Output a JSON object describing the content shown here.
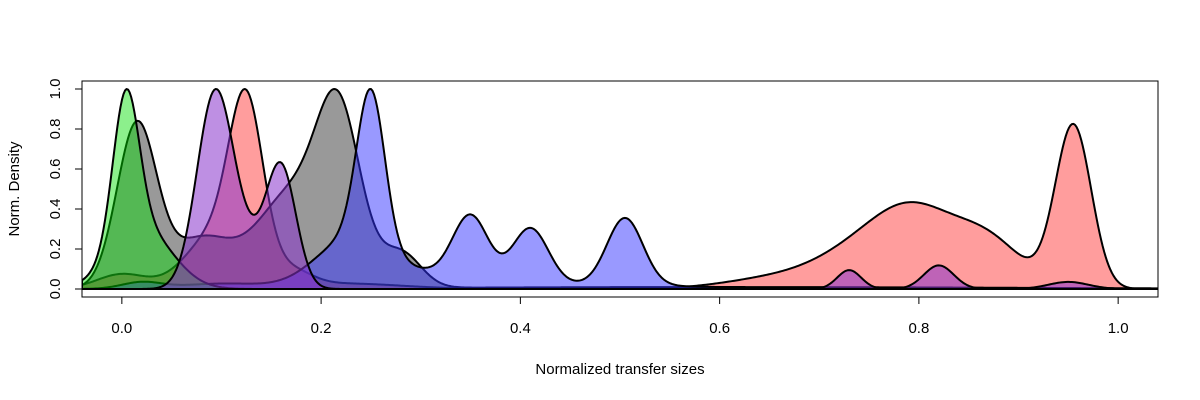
{
  "chart_data": {
    "type": "area",
    "title": "",
    "xlabel": "Normalized transfer sizes",
    "ylabel": "Norm. Density",
    "xlim": [
      -0.04,
      1.04
    ],
    "ylim": [
      -0.04,
      1.04
    ],
    "x_ticks": [
      "0.0",
      "0.2",
      "0.4",
      "0.6",
      "0.8",
      "1.0"
    ],
    "y_ticks": [
      "0.0",
      "0.2",
      "0.4",
      "0.6",
      "0.8",
      "1.0"
    ],
    "grid": false,
    "legend": "none",
    "series": [
      {
        "color": "#ff4d4d",
        "opacity": 0.55,
        "peaks": [
          {
            "mu": 0.0,
            "sigma": 0.025,
            "amp": 0.08
          },
          {
            "mu": 0.095,
            "sigma": 0.03,
            "amp": 0.3
          },
          {
            "mu": 0.125,
            "sigma": 0.017,
            "amp": 0.88
          },
          {
            "mu": 0.17,
            "sigma": 0.02,
            "amp": 0.08
          },
          {
            "mu": 0.22,
            "sigma": 0.06,
            "amp": 0.03
          },
          {
            "mu": 0.65,
            "sigma": 0.05,
            "amp": 0.05
          },
          {
            "mu": 0.75,
            "sigma": 0.05,
            "amp": 0.22
          },
          {
            "mu": 0.8,
            "sigma": 0.04,
            "amp": 0.3
          },
          {
            "mu": 0.87,
            "sigma": 0.035,
            "amp": 0.24
          },
          {
            "mu": 0.955,
            "sigma": 0.018,
            "amp": 0.88
          }
        ]
      },
      {
        "color": "#333333",
        "opacity": 0.5,
        "peaks": [
          {
            "mu": 0.015,
            "sigma": 0.02,
            "amp": 0.84
          },
          {
            "mu": 0.08,
            "sigma": 0.03,
            "amp": 0.25
          },
          {
            "mu": 0.17,
            "sigma": 0.035,
            "amp": 0.48
          },
          {
            "mu": 0.218,
            "sigma": 0.022,
            "amp": 0.82
          },
          {
            "mu": 0.28,
            "sigma": 0.02,
            "amp": 0.18
          },
          {
            "mu": 0.6,
            "sigma": 0.3,
            "amp": 0.01
          }
        ]
      },
      {
        "color": "#3333ff",
        "opacity": 0.5,
        "peaks": [
          {
            "mu": 0.02,
            "sigma": 0.02,
            "amp": 0.04
          },
          {
            "mu": 0.1,
            "sigma": 0.04,
            "amp": 0.03
          },
          {
            "mu": 0.25,
            "sigma": 0.014,
            "amp": 0.96
          },
          {
            "mu": 0.23,
            "sigma": 0.035,
            "amp": 0.3
          },
          {
            "mu": 0.3,
            "sigma": 0.03,
            "amp": 0.06
          },
          {
            "mu": 0.35,
            "sigma": 0.018,
            "amp": 0.42
          },
          {
            "mu": 0.41,
            "sigma": 0.018,
            "amp": 0.35
          },
          {
            "mu": 0.505,
            "sigma": 0.018,
            "amp": 0.42
          },
          {
            "mu": 0.4,
            "sigma": 0.15,
            "amp": 0.03
          }
        ]
      },
      {
        "color": "#00dd00",
        "opacity": 0.45,
        "peaks": [
          {
            "mu": 0.004,
            "sigma": 0.013,
            "amp": 0.92
          },
          {
            "mu": 0.02,
            "sigma": 0.03,
            "amp": 0.38
          }
        ]
      },
      {
        "color": "#8833cc",
        "opacity": 0.55,
        "peaks": [
          {
            "mu": 0.093,
            "sigma": 0.018,
            "amp": 0.4
          },
          {
            "mu": 0.16,
            "sigma": 0.015,
            "amp": 0.25
          },
          {
            "mu": 0.125,
            "sigma": 0.02,
            "amp": 0.08
          },
          {
            "mu": 0.73,
            "sigma": 0.012,
            "amp": 0.04
          },
          {
            "mu": 0.82,
            "sigma": 0.015,
            "amp": 0.05
          },
          {
            "mu": 0.95,
            "sigma": 0.02,
            "amp": 0.015
          }
        ]
      }
    ]
  }
}
